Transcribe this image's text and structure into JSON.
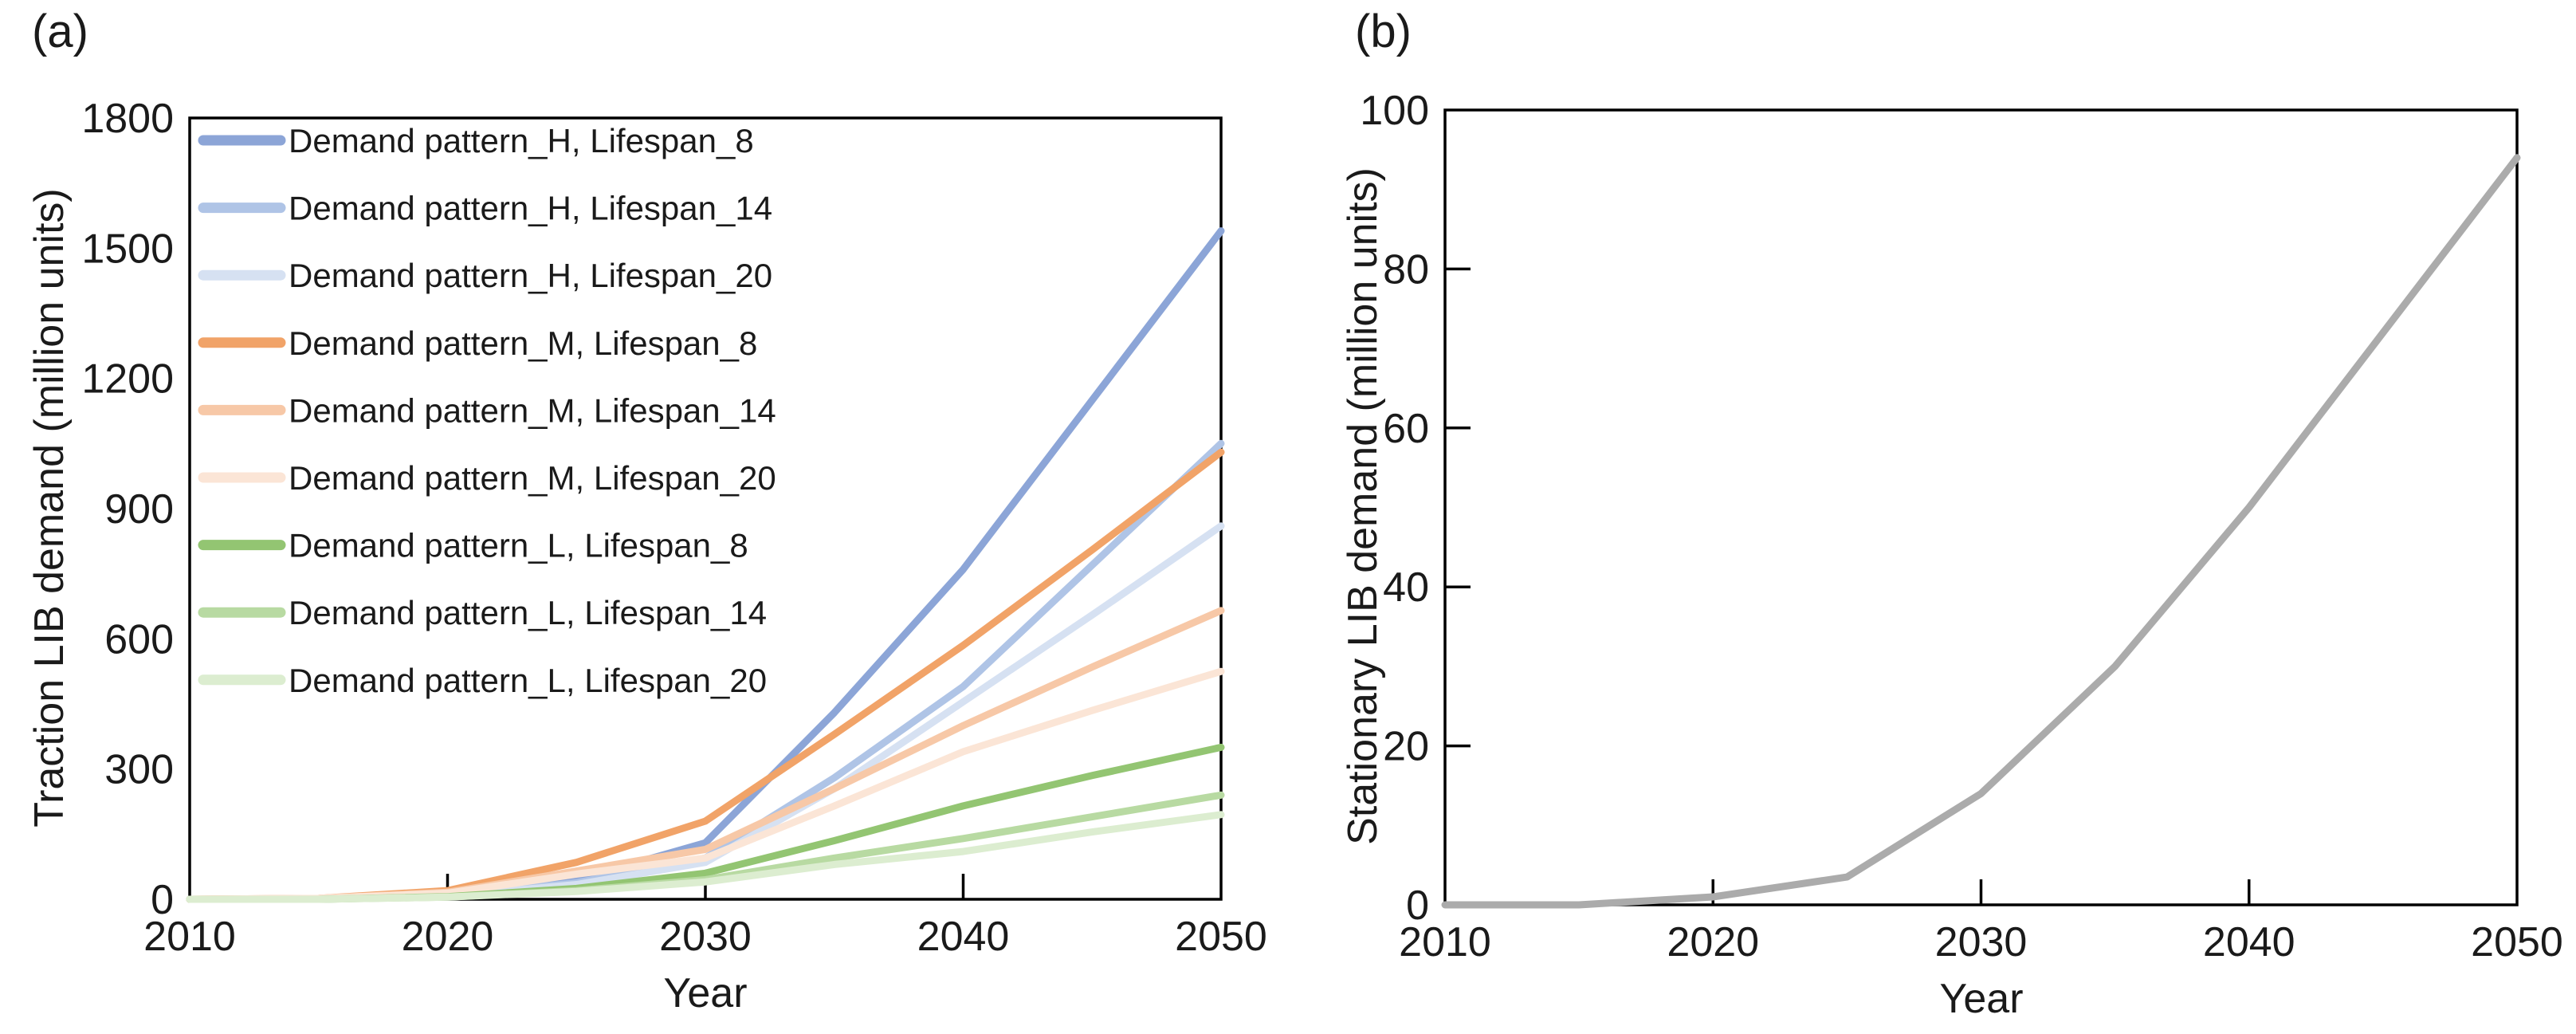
{
  "panels": [
    {
      "id": "a",
      "label": "(a)",
      "y_axis": {
        "title": "Traction LIB demand (million units)",
        "tick_values": [
          0,
          300,
          600,
          900,
          1200,
          1500,
          1800
        ],
        "tick_labels": [
          "0",
          "300",
          "600",
          "900",
          "1200",
          "1500",
          "1800"
        ],
        "inner_ticks": []
      },
      "x_axis": {
        "title": "Year",
        "tick_values": [
          2010,
          2020,
          2030,
          2040,
          2050
        ],
        "tick_labels": [
          "2010",
          "2020",
          "2030",
          "2040",
          "2050"
        ],
        "inner_ticks": [
          2020,
          2030,
          2040
        ]
      },
      "legend": {
        "visible": true,
        "position": "top-left-inside"
      },
      "chart_data": {
        "type": "line",
        "xlabel": "Year",
        "ylabel": "Traction LIB demand (million units)",
        "xlim": [
          2010,
          2050
        ],
        "ylim": [
          0,
          1800
        ],
        "grid": false,
        "x": [
          2010,
          2015,
          2020,
          2025,
          2030,
          2035,
          2040,
          2045,
          2050
        ],
        "series": [
          {
            "name": "Demand pattern_H, Lifespan_8",
            "color": "#8CA5D7",
            "values": [
              0,
              0,
              10,
              45,
              130,
              430,
              760,
              1150,
              1540
            ]
          },
          {
            "name": "Demand pattern_H, Lifespan_14",
            "color": "#AFC4E6",
            "values": [
              0,
              0,
              8,
              38,
              95,
              280,
              490,
              770,
              1050
            ]
          },
          {
            "name": "Demand pattern_H, Lifespan_20",
            "color": "#D6E1F2",
            "values": [
              0,
              0,
              7,
              34,
              85,
              255,
              455,
              655,
              860
            ]
          },
          {
            "name": "Demand pattern_M, Lifespan_8",
            "color": "#F1A368",
            "values": [
              0,
              2,
              20,
              85,
              180,
              380,
              585,
              805,
              1030
            ]
          },
          {
            "name": "Demand pattern_M, Lifespan_14",
            "color": "#F7C8A7",
            "values": [
              0,
              2,
              16,
              65,
              115,
              255,
              400,
              535,
              665
            ]
          },
          {
            "name": "Demand pattern_M, Lifespan_20",
            "color": "#FBE5D6",
            "values": [
              0,
              2,
              14,
              58,
              95,
              215,
              340,
              435,
              525
            ]
          },
          {
            "name": "Demand pattern_L, Lifespan_8",
            "color": "#93C572",
            "values": [
              0,
              0,
              6,
              25,
              60,
              135,
              215,
              285,
              350
            ]
          },
          {
            "name": "Demand pattern_L, Lifespan_14",
            "color": "#B8DAA2",
            "values": [
              0,
              0,
              5,
              20,
              45,
              95,
              140,
              190,
              240
            ]
          },
          {
            "name": "Demand pattern_L, Lifespan_20",
            "color": "#DCEDD0",
            "values": [
              0,
              0,
              5,
              18,
              40,
              80,
              110,
              155,
              195
            ]
          }
        ]
      }
    },
    {
      "id": "b",
      "label": "(b)",
      "y_axis": {
        "title": "Stationary LIB demand (million units)",
        "tick_values": [
          0,
          20,
          40,
          60,
          80,
          100
        ],
        "tick_labels": [
          "0",
          "20",
          "40",
          "60",
          "80",
          "100"
        ],
        "inner_ticks": [
          20,
          40,
          60,
          80
        ]
      },
      "x_axis": {
        "title": "Year",
        "tick_values": [
          2010,
          2020,
          2030,
          2040,
          2050
        ],
        "tick_labels": [
          "2010",
          "2020",
          "2030",
          "2040",
          "2050"
        ],
        "inner_ticks": [
          2020,
          2030,
          2040
        ]
      },
      "legend": {
        "visible": false,
        "position": "none"
      },
      "chart_data": {
        "type": "line",
        "xlabel": "Year",
        "ylabel": "Stationary LIB demand (million units)",
        "xlim": [
          2010,
          2050
        ],
        "ylim": [
          0,
          100
        ],
        "grid": false,
        "x": [
          2010,
          2015,
          2020,
          2025,
          2030,
          2035,
          2040,
          2045,
          2050
        ],
        "series": [
          {
            "name": "Stationary LIB demand",
            "color": "#ABABAB",
            "values": [
              0,
              0,
              1,
              3.5,
              14,
              30,
              50,
              72,
              94
            ]
          }
        ]
      }
    }
  ]
}
